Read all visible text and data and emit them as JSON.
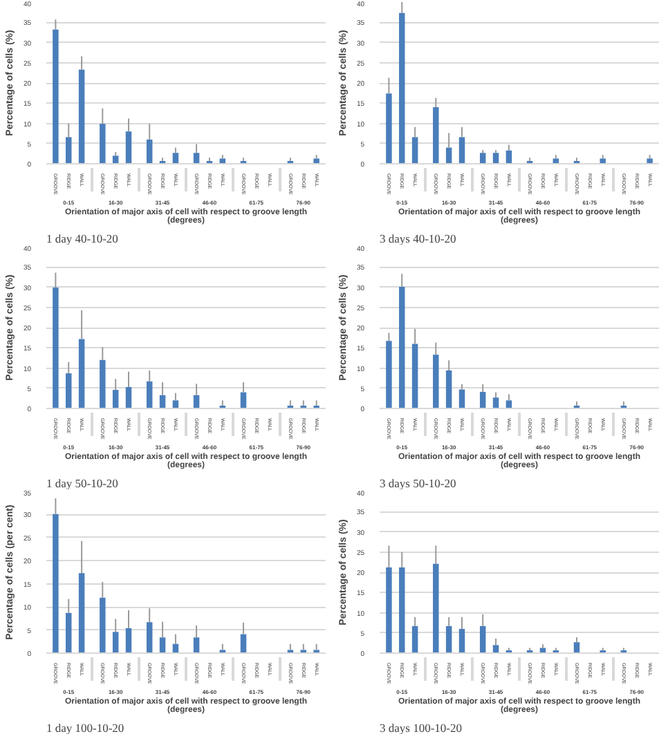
{
  "chart_data": [
    {
      "type": "bar",
      "title": "1 day 40-10-20",
      "xlabel": "Orientation of major axis of cell with respect to groove length (degrees)",
      "ylabel": "Percentage of cells (%)",
      "categories": [
        "GROOVE",
        "RIDGE",
        "WALL",
        "GROOVE",
        "RIDGE",
        "WALL",
        "GROOVE",
        "RIDGE",
        "WALL",
        "GROOVE",
        "RIDGE",
        "WALL",
        "GROOVE",
        "RIDGE",
        "WALL",
        "GROOVE",
        "RIDGE",
        "WALL"
      ],
      "annotations": [
        "0-15",
        "16-30",
        "31-45",
        "46-60",
        "61-75",
        "76-90"
      ],
      "values": [
        33.2,
        6.6,
        23.3,
        9.9,
        2,
        8,
        6,
        0.7,
        2.7,
        2.7,
        0.7,
        1.3,
        0.7,
        0,
        0,
        0.7,
        0,
        1.3
      ],
      "errors": [
        [
          33.2,
          35.7
        ],
        [
          6.6,
          10
        ],
        [
          23.3,
          26.6
        ],
        [
          9.9,
          13.7
        ],
        [
          2,
          2.9
        ],
        [
          8,
          11.2
        ],
        [
          6,
          9.9
        ],
        [
          0.7,
          1.5
        ],
        [
          2.7,
          4
        ],
        [
          2.7,
          4.9
        ],
        [
          0.7,
          1.5
        ],
        [
          1.3,
          2.2
        ],
        [
          0.7,
          1.5
        ],
        null,
        null,
        [
          0.7,
          1.5
        ],
        null,
        [
          1.3,
          2.2
        ]
      ],
      "color": "#4a7ebb",
      "ylim": [
        0,
        40
      ],
      "yticks": [
        0,
        5,
        10,
        15,
        20,
        25,
        30,
        35,
        40
      ],
      "grid": "y"
    },
    {
      "type": "bar",
      "title": "3 days 40-10-20",
      "xlabel": "Orientation of major axis of cell with respect to groove length (degrees)",
      "ylabel": "Percentage of cells (%)",
      "categories": [
        "GROOVE",
        "RIDGE",
        "WALL",
        "GROOVE",
        "RIDGE",
        "WALL",
        "GROOVE",
        "RIDGE",
        "WALL",
        "GROOVE",
        "RIDGE",
        "WALL",
        "GROOVE",
        "RIDGE",
        "WALL",
        "GROOVE",
        "RIDGE",
        "WALL"
      ],
      "annotations": [
        "0-15",
        "16-30",
        "31-45",
        "46-60",
        "61-75",
        "76-90"
      ],
      "values": [
        17.4,
        37.3,
        6.6,
        14,
        4,
        6.6,
        2.7,
        2.7,
        3.3,
        0.7,
        0,
        1.3,
        0.7,
        0,
        1.3,
        0,
        0,
        1.3
      ],
      "errors": [
        [
          17.4,
          21.3
        ],
        [
          37.3,
          40
        ],
        [
          6.6,
          9.1
        ],
        [
          14,
          16.3
        ],
        [
          4,
          7.6
        ],
        [
          6.6,
          9.1
        ],
        [
          2.7,
          3.4
        ],
        [
          2.7,
          3.4
        ],
        [
          3.3,
          4.7
        ],
        [
          0.7,
          1.5
        ],
        null,
        [
          1.3,
          2.2
        ],
        [
          0.7,
          1.5
        ],
        null,
        [
          1.3,
          2.2
        ],
        null,
        null,
        [
          1.3,
          2.2
        ]
      ],
      "color": "#4a7ebb",
      "ylim": [
        0,
        40
      ],
      "yticks": [
        0,
        5,
        10,
        15,
        20,
        25,
        30,
        35,
        40
      ],
      "grid": "y"
    },
    {
      "type": "bar",
      "title": "1 day 50-10-20",
      "xlabel": "Orientation of major axis of cell with respect to groove length (degrees)",
      "ylabel": "Percentage of cells (%)",
      "categories": [
        "GROOVE",
        "RIDGE",
        "WALL",
        "GROOVE",
        "RIDGE",
        "WALL",
        "GROOVE",
        "RIDGE",
        "WALL",
        "GROOVE",
        "RIDGE",
        "WALL",
        "GROOVE",
        "RIDGE",
        "WALL",
        "GROOVE",
        "RIDGE",
        "WALL"
      ],
      "annotations": [
        "0-15",
        "16-30",
        "31-45",
        "46-60",
        "61-75",
        "76-90"
      ],
      "values": [
        29.9,
        8.7,
        17.2,
        12,
        4.6,
        5.3,
        6.7,
        3.3,
        2,
        3.3,
        0,
        0.7,
        4,
        0,
        0,
        0.7,
        0.7,
        0.7
      ],
      "errors": [
        [
          29.9,
          33.6
        ],
        [
          8.7,
          11.5
        ],
        [
          17.2,
          24.3
        ],
        [
          12,
          15.2
        ],
        [
          4.6,
          7.3
        ],
        [
          5.3,
          9.1
        ],
        [
          6.7,
          9.4
        ],
        [
          3.3,
          6.5
        ],
        [
          2,
          3.8
        ],
        [
          3.3,
          6.1
        ],
        null,
        [
          0.7,
          2
        ],
        [
          4,
          6.5
        ],
        null,
        null,
        [
          0.7,
          2
        ],
        [
          0.7,
          2
        ],
        [
          0.7,
          2
        ]
      ],
      "color": "#4a7ebb",
      "ylim": [
        0,
        40
      ],
      "yticks": [
        0,
        5,
        10,
        15,
        20,
        25,
        30,
        35,
        40
      ],
      "grid": "y"
    },
    {
      "type": "bar",
      "title": "3 days 50-10-20",
      "xlabel": "Orientation of major axis of cell with respect to groove length (degrees)",
      "ylabel": "Percentage of cells (%)",
      "categories": [
        "GROOVE",
        "RIDGE",
        "WALL",
        "GROOVE",
        "RIDGE",
        "WALL",
        "GROOVE",
        "RIDGE",
        "WALL",
        "GROOVE",
        "RIDGE",
        "WALL",
        "GROOVE",
        "RIDGE",
        "WALL",
        "GROOVE",
        "RIDGE",
        "WALL"
      ],
      "annotations": [
        "0-15",
        "16-30",
        "31-45",
        "46-60",
        "61-75",
        "76-90"
      ],
      "values": [
        16.7,
        30.1,
        16,
        13.3,
        9.4,
        4.7,
        4.1,
        2.7,
        2,
        0,
        0,
        0,
        0.7,
        0,
        0,
        0.7,
        0,
        0
      ],
      "errors": [
        [
          16.7,
          18.7
        ],
        [
          30.1,
          33.3
        ],
        [
          16,
          19.7
        ],
        [
          13.3,
          16.3
        ],
        [
          9.4,
          11.9
        ],
        [
          4.7,
          6
        ],
        [
          4.1,
          6
        ],
        [
          2.7,
          4
        ],
        [
          2,
          3.5
        ],
        null,
        null,
        null,
        [
          0.7,
          1.7
        ],
        null,
        null,
        [
          0.7,
          1.7
        ],
        null,
        null
      ],
      "color": "#4a7ebb",
      "ylim": [
        0,
        40
      ],
      "yticks": [
        0,
        5,
        10,
        15,
        20,
        25,
        30,
        35,
        40
      ],
      "grid": "y"
    },
    {
      "type": "bar",
      "title": "1 day 100-10-20",
      "xlabel": "Orientation of major axis of cell with respect to groove length (degrees)",
      "ylabel": "Percentage of cells (per cent)",
      "categories": [
        "GROOVE",
        "RIDGE",
        "WALL",
        "GROOVE",
        "RIDGE",
        "WALL",
        "GROOVE",
        "RIDGE",
        "WALL",
        "GROOVE",
        "RIDGE",
        "WALL",
        "GROOVE",
        "RIDGE",
        "WALL",
        "GROOVE",
        "RIDGE",
        "WALL"
      ],
      "annotations": [
        "0-15",
        "16-30",
        "31-45",
        "46-60",
        "61-75",
        "76-90"
      ],
      "values": [
        30.1,
        8.7,
        17.3,
        12,
        4.6,
        5.4,
        6.7,
        3.4,
        2,
        3.4,
        0,
        0.7,
        4.1,
        0,
        0,
        0.7,
        0.7,
        0.7
      ],
      "errors": [
        [
          30.1,
          33.5
        ],
        [
          8.7,
          11.7
        ],
        [
          17.3,
          24.3
        ],
        [
          12,
          15.4
        ],
        [
          4.6,
          7.4
        ],
        [
          5.4,
          9.3
        ],
        [
          6.7,
          9.7
        ],
        [
          3.4,
          6.8
        ],
        [
          2,
          4.1
        ],
        [
          3.4,
          6
        ],
        null,
        [
          0.7,
          2
        ],
        [
          4.1,
          6.6
        ],
        null,
        null,
        [
          0.7,
          2
        ],
        [
          0.7,
          2
        ],
        [
          0.7,
          2
        ]
      ],
      "color": "#4a7ebb",
      "ylim": [
        0,
        35
      ],
      "yticks": [
        0,
        5,
        10,
        15,
        20,
        25,
        30,
        35
      ],
      "grid": "y"
    },
    {
      "type": "bar",
      "title": "3 days 100-10-20",
      "xlabel": "Orientation of major axis of cell with respect to groove length (degrees)",
      "ylabel": "Percentage of cells (%)",
      "categories": [
        "GROOVE",
        "RIDGE",
        "WALL",
        "GROOVE",
        "RIDGE",
        "WALL",
        "GROOVE",
        "RIDGE",
        "WALL",
        "GROOVE",
        "RIDGE",
        "WALL",
        "GROOVE",
        "RIDGE",
        "WALL",
        "GROOVE",
        "RIDGE",
        "WALL"
      ],
      "annotations": [
        "0-15",
        "16-30",
        "31-45",
        "46-60",
        "61-75",
        "76-90"
      ],
      "values": [
        21.2,
        21.2,
        6.7,
        22.1,
        6.7,
        6,
        6.7,
        2,
        0.7,
        0.7,
        1.3,
        0.7,
        2.7,
        0,
        0.7,
        0.7,
        0,
        0
      ],
      "errors": [
        [
          21.2,
          26.6
        ],
        [
          21.2,
          25
        ],
        [
          6.7,
          8.9
        ],
        [
          22.1,
          26.6
        ],
        [
          6.7,
          8.9
        ],
        [
          6,
          8.9
        ],
        [
          6.7,
          9.6
        ],
        [
          2,
          3.6
        ],
        [
          0.7,
          1.3
        ],
        [
          0.7,
          1.3
        ],
        [
          1.3,
          2.2
        ],
        [
          0.7,
          1.3
        ],
        [
          2.7,
          3.9
        ],
        null,
        [
          0.7,
          1.3
        ],
        [
          0.7,
          1.3
        ],
        null,
        null
      ],
      "color": "#4a7ebb",
      "ylim": [
        0,
        40
      ],
      "yticks": [
        0,
        5,
        10,
        15,
        20,
        25,
        30,
        35,
        40
      ],
      "grid": "y"
    }
  ]
}
